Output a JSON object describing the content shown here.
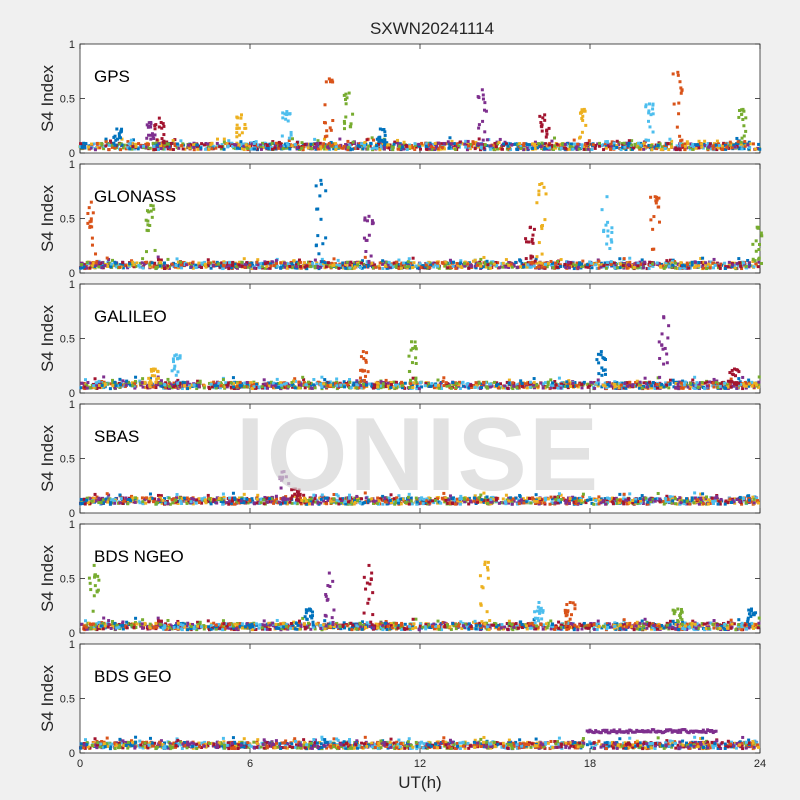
{
  "figure": {
    "title": "SXWN20241114",
    "watermark": "IONISE",
    "xlabel": "UT(h)"
  },
  "chart_data": {
    "type": "scatter",
    "title": "SXWN20241114",
    "xlabel": "UT(h)",
    "ylabel": "S4 Index",
    "xlim": [
      0,
      24
    ],
    "ylim": [
      0,
      1
    ],
    "x_ticks": [
      "0",
      "6",
      "12",
      "18",
      "24"
    ],
    "y_ticks": [
      "0",
      "0.5",
      "1"
    ],
    "grid": false,
    "series_colors": [
      "#0072BD",
      "#D95319",
      "#EDB120",
      "#7E2F8E",
      "#77AC30",
      "#4DBEEE",
      "#A2142F"
    ],
    "panels": [
      {
        "name": "GPS",
        "ylabel": "S4 Index",
        "baseline": 0.06,
        "spikes": [
          {
            "t": 1.3,
            "s4": 0.22
          },
          {
            "t": 2.5,
            "s4": 0.28
          },
          {
            "t": 2.8,
            "s4": 0.32
          },
          {
            "t": 5.7,
            "s4": 0.35
          },
          {
            "t": 7.3,
            "s4": 0.38
          },
          {
            "t": 8.8,
            "s4": 0.68
          },
          {
            "t": 9.5,
            "s4": 0.55
          },
          {
            "t": 10.6,
            "s4": 0.22
          },
          {
            "t": 14.2,
            "s4": 0.58
          },
          {
            "t": 16.4,
            "s4": 0.35
          },
          {
            "t": 17.8,
            "s4": 0.4
          },
          {
            "t": 20.1,
            "s4": 0.45
          },
          {
            "t": 21.1,
            "s4": 0.74
          },
          {
            "t": 23.4,
            "s4": 0.4
          }
        ]
      },
      {
        "name": "GLONASS",
        "ylabel": "S4 Index",
        "baseline": 0.07,
        "spikes": [
          {
            "t": 0.4,
            "s4": 0.65
          },
          {
            "t": 2.5,
            "s4": 0.62
          },
          {
            "t": 8.5,
            "s4": 0.85
          },
          {
            "t": 10.2,
            "s4": 0.52
          },
          {
            "t": 15.9,
            "s4": 0.42
          },
          {
            "t": 16.3,
            "s4": 0.82
          },
          {
            "t": 18.6,
            "s4": 0.7
          },
          {
            "t": 20.3,
            "s4": 0.7
          },
          {
            "t": 23.9,
            "s4": 0.42
          }
        ]
      },
      {
        "name": "GALILEO",
        "ylabel": "S4 Index",
        "baseline": 0.07,
        "spikes": [
          {
            "t": 2.6,
            "s4": 0.22
          },
          {
            "t": 3.4,
            "s4": 0.35
          },
          {
            "t": 10.0,
            "s4": 0.38
          },
          {
            "t": 11.7,
            "s4": 0.47
          },
          {
            "t": 18.4,
            "s4": 0.38
          },
          {
            "t": 20.6,
            "s4": 0.7
          },
          {
            "t": 23.1,
            "s4": 0.22
          }
        ]
      },
      {
        "name": "SBAS",
        "ylabel": "S4 Index",
        "baseline": 0.11,
        "spikes": [
          {
            "t": 7.2,
            "s4": 0.38
          },
          {
            "t": 7.6,
            "s4": 0.22
          }
        ]
      },
      {
        "name": "BDS NGEO",
        "ylabel": "S4 Index",
        "baseline": 0.06,
        "spikes": [
          {
            "t": 0.5,
            "s4": 0.62
          },
          {
            "t": 8.1,
            "s4": 0.22
          },
          {
            "t": 8.8,
            "s4": 0.55
          },
          {
            "t": 10.2,
            "s4": 0.62
          },
          {
            "t": 14.3,
            "s4": 0.65
          },
          {
            "t": 16.2,
            "s4": 0.28
          },
          {
            "t": 17.3,
            "s4": 0.28
          },
          {
            "t": 21.1,
            "s4": 0.22
          },
          {
            "t": 23.7,
            "s4": 0.22
          }
        ]
      },
      {
        "name": "BDS GEO",
        "ylabel": "S4 Index",
        "baseline": 0.07,
        "plateau": {
          "start": 17.9,
          "end": 22.5,
          "s4": 0.2
        }
      }
    ]
  }
}
